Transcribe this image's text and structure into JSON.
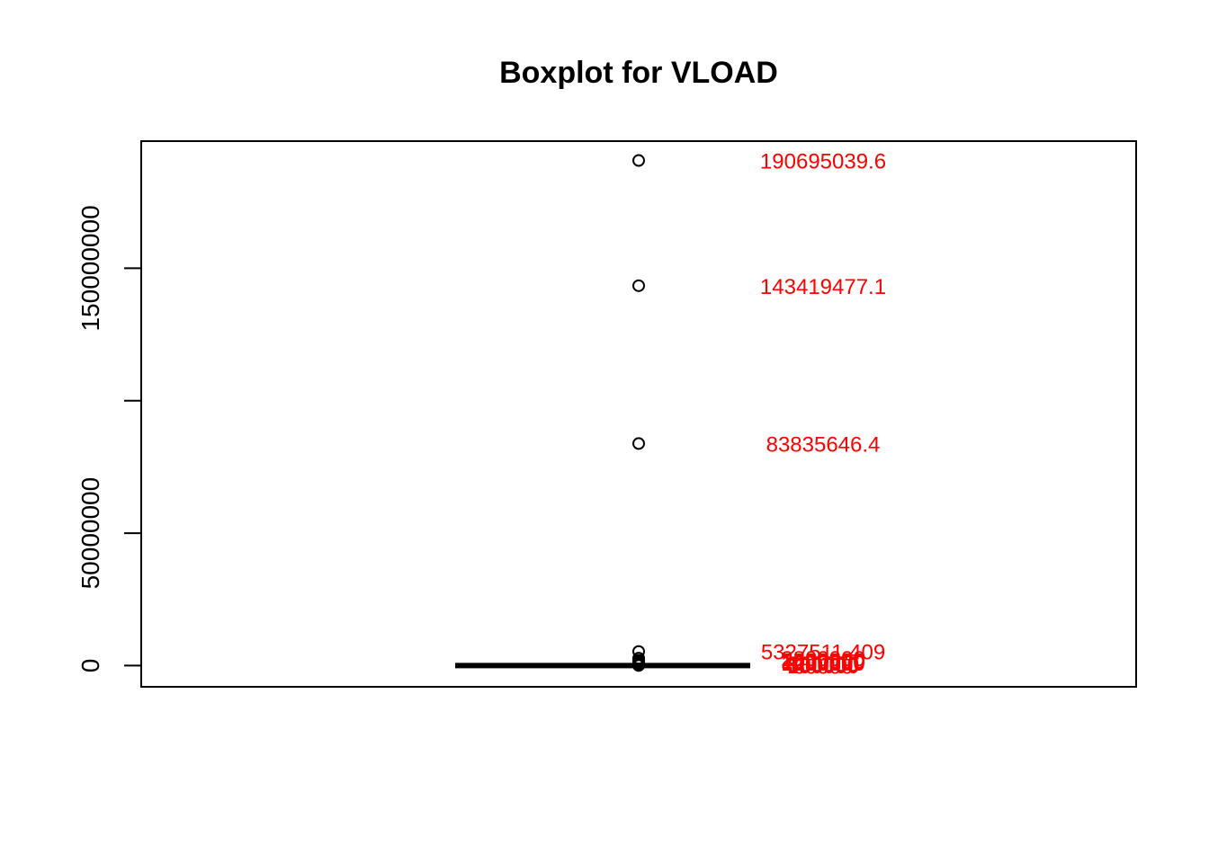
{
  "chart_data": {
    "type": "boxplot",
    "title": "Boxplot for VLOAD",
    "xlabel": "",
    "ylabel": "",
    "ylim": [
      -8000000,
      198000000
    ],
    "y_ticks": [
      0,
      50000000,
      100000000,
      150000000
    ],
    "y_tick_labels": [
      "0",
      "50000000",
      "",
      "150000000"
    ],
    "box": {
      "min": 0,
      "q1": 0,
      "median": 0,
      "q3": 0,
      "max": 0
    },
    "outliers": [
      190695039.6,
      143419477.1,
      83835646.4,
      5327511.409,
      2800000,
      2000000,
      1600000,
      1200000,
      800000,
      500000,
      300000,
      150000,
      60000
    ],
    "labelled_outliers": [
      {
        "value": 190695039.6,
        "label": "190695039.6"
      },
      {
        "value": 143419477.1,
        "label": "143419477.1"
      },
      {
        "value": 83835646.4,
        "label": "83835646.4"
      },
      {
        "value": 5327511.409,
        "label": "5327511.409"
      }
    ],
    "overlapping_labels": [
      {
        "value": 2800000,
        "label": "2800000"
      },
      {
        "value": 2000000,
        "label": "2000000"
      },
      {
        "value": 1600000,
        "label": "1600000"
      },
      {
        "value": 1200000,
        "label": "1200000"
      },
      {
        "value": 800000,
        "label": "800000"
      },
      {
        "value": 500000,
        "label": "500000"
      },
      {
        "value": 300000,
        "label": "300000"
      },
      {
        "value": 150000,
        "label": "150000"
      },
      {
        "value": 60000,
        "label": "60000"
      }
    ],
    "label_color": "#ff0000",
    "grid": false,
    "legend": "none"
  }
}
